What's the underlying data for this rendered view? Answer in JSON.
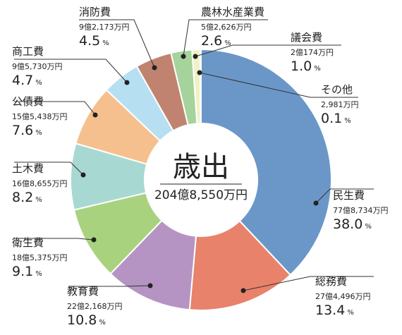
{
  "chart_data": {
    "type": "pie",
    "title": "歳出",
    "total": "204億8,550万円",
    "slices": [
      {
        "label": "民生費",
        "amount": "77億8,734万円",
        "value": 38.0,
        "color": "#6b97c8"
      },
      {
        "label": "総務費",
        "amount": "27億4,496万円",
        "value": 13.4,
        "color": "#e8826a"
      },
      {
        "label": "教育費",
        "amount": "22億2,168万円",
        "value": 10.8,
        "color": "#b594c4"
      },
      {
        "label": "衛生費",
        "amount": "18億5,375万円",
        "value": 9.1,
        "color": "#a9d27f"
      },
      {
        "label": "土木費",
        "amount": "16億8,655万円",
        "value": 8.2,
        "color": "#a8d8d2"
      },
      {
        "label": "公債費",
        "amount": "15億5,438万円",
        "value": 7.6,
        "color": "#f5c08e"
      },
      {
        "label": "商工費",
        "amount": "9億5,730万円",
        "value": 4.7,
        "color": "#b6e0f2"
      },
      {
        "label": "消防費",
        "amount": "9億2,173万円",
        "value": 4.5,
        "color": "#c08370"
      },
      {
        "label": "農林水産業費",
        "amount": "5億2,626万円",
        "value": 2.6,
        "color": "#a6d39b"
      },
      {
        "label": "議会費",
        "amount": "2億174万円",
        "value": 1.0,
        "color": "#eef2c4"
      },
      {
        "label": "その他",
        "amount": "2,981万円",
        "value": 0.1,
        "color": "#cfe3ef"
      }
    ]
  }
}
